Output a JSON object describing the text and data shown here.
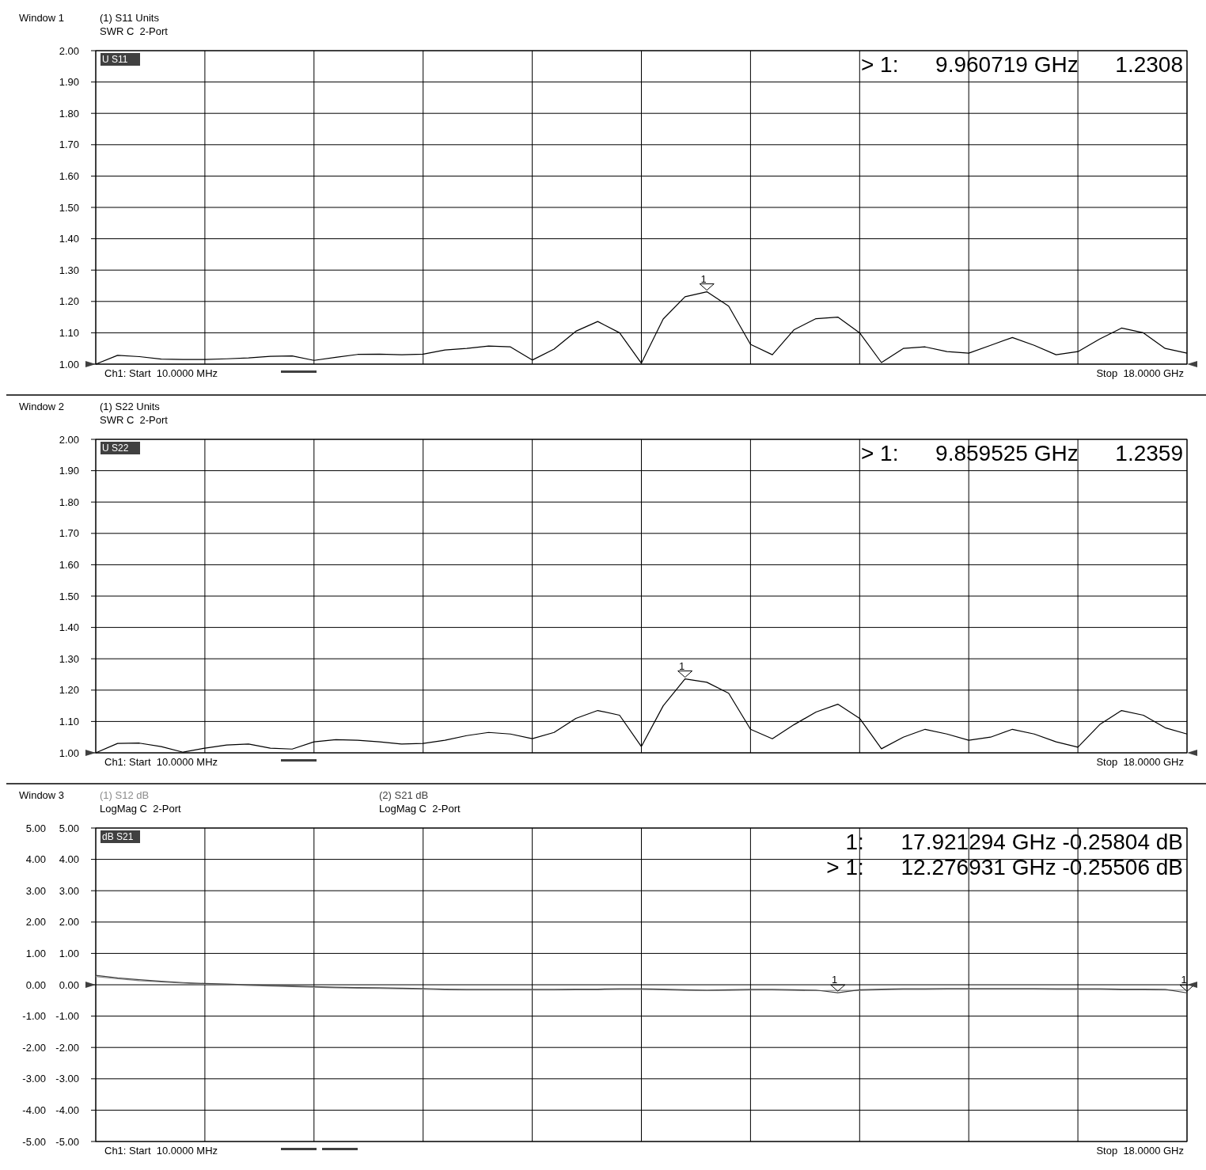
{
  "chart_data": [
    {
      "type": "line",
      "title": "Window 1",
      "subtitle": "SWR C  2-Port",
      "grid": true,
      "tick_labels": "y",
      "categories": [
        null,
        null,
        null,
        null,
        null,
        null,
        null,
        null,
        null,
        null,
        null,
        null,
        null,
        null,
        null,
        null,
        null,
        null,
        null,
        null,
        null,
        null,
        null,
        null,
        null,
        null,
        null,
        null,
        null,
        null,
        null,
        null,
        null,
        null,
        null,
        null,
        null,
        null,
        null,
        null,
        null,
        null,
        null,
        null,
        null,
        null,
        null,
        null,
        null,
        null,
        null
      ],
      "ylim": [
        1,
        2
      ],
      "yticks": [
        {
          "value": 1,
          "label": "1.00"
        },
        {
          "value": 1.1,
          "label": "1.10"
        },
        {
          "value": 1.2,
          "label": "1.20"
        },
        {
          "value": 1.3,
          "label": "1.30"
        },
        {
          "value": 1.4,
          "label": "1.40"
        },
        {
          "value": 1.5,
          "label": "1.50"
        },
        {
          "value": 1.6,
          "label": "1.60"
        },
        {
          "value": 1.7,
          "label": "1.70"
        },
        {
          "value": 1.8,
          "label": "1.80"
        },
        {
          "value": 1.9,
          "label": "1.90"
        },
        {
          "value": 2,
          "label": "2.00"
        }
      ],
      "series": [
        {
          "name": "(1) S11 Units",
          "color": "#000000",
          "values": [
            1.0,
            1.028,
            1.024,
            1.016,
            1.015,
            1.015,
            1.017,
            1.02,
            1.025,
            1.026,
            1.012,
            1.022,
            1.031,
            1.032,
            1.03,
            1.032,
            1.045,
            1.05,
            1.058,
            1.055,
            1.013,
            1.048,
            1.105,
            1.136,
            1.1,
            1.003,
            1.144,
            1.215,
            1.2308,
            1.185,
            1.063,
            1.03,
            1.11,
            1.145,
            1.15,
            1.1,
            1.005,
            1.05,
            1.055,
            1.04,
            1.035,
            1.06,
            1.085,
            1.06,
            1.03,
            1.04,
            1.08,
            1.115,
            1.1,
            1.05,
            1.035
          ]
        }
      ],
      "annotations": [
        "U S11",
        "> 1:      9.960719 GHz      1.2308",
        "Ch1: Start  10.0000 MHz",
        "Stop  18.0000 GHz",
        {
          "text": "1",
          "y": 1.2308
        }
      ]
    },
    {
      "type": "line",
      "title": "Window 2",
      "subtitle": "SWR C  2-Port",
      "grid": true,
      "tick_labels": "y",
      "categories": [
        null,
        null,
        null,
        null,
        null,
        null,
        null,
        null,
        null,
        null,
        null,
        null,
        null,
        null,
        null,
        null,
        null,
        null,
        null,
        null,
        null,
        null,
        null,
        null,
        null,
        null,
        null,
        null,
        null,
        null,
        null,
        null,
        null,
        null,
        null,
        null,
        null,
        null,
        null,
        null,
        null,
        null,
        null,
        null,
        null,
        null,
        null,
        null,
        null,
        null,
        null
      ],
      "ylim": [
        1,
        2
      ],
      "yticks": [
        {
          "value": 1,
          "label": "1.00"
        },
        {
          "value": 1.1,
          "label": "1.10"
        },
        {
          "value": 1.2,
          "label": "1.20"
        },
        {
          "value": 1.3,
          "label": "1.30"
        },
        {
          "value": 1.4,
          "label": "1.40"
        },
        {
          "value": 1.5,
          "label": "1.50"
        },
        {
          "value": 1.6,
          "label": "1.60"
        },
        {
          "value": 1.7,
          "label": "1.70"
        },
        {
          "value": 1.8,
          "label": "1.80"
        },
        {
          "value": 1.9,
          "label": "1.90"
        },
        {
          "value": 2,
          "label": "2.00"
        }
      ],
      "series": [
        {
          "name": "(1) S22 Units",
          "color": "#000000",
          "values": [
            1.0,
            1.03,
            1.031,
            1.02,
            1.002,
            1.015,
            1.025,
            1.028,
            1.015,
            1.012,
            1.035,
            1.042,
            1.04,
            1.035,
            1.028,
            1.03,
            1.04,
            1.055,
            1.065,
            1.06,
            1.045,
            1.065,
            1.11,
            1.135,
            1.12,
            1.02,
            1.15,
            1.2359,
            1.225,
            1.19,
            1.075,
            1.045,
            1.09,
            1.13,
            1.155,
            1.11,
            1.013,
            1.05,
            1.075,
            1.06,
            1.04,
            1.05,
            1.075,
            1.06,
            1.035,
            1.018,
            1.09,
            1.135,
            1.12,
            1.08,
            1.06
          ]
        }
      ],
      "annotations": [
        "U S22",
        "> 1:      9.859525 GHz      1.2359",
        "Ch1: Start  10.0000 MHz",
        "Stop  18.0000 GHz",
        {
          "text": "1",
          "y": 1.2359
        }
      ]
    },
    {
      "type": "line",
      "title": "Window 3",
      "subtitle": "LogMag C  2-Port",
      "grid": true,
      "tick_labels": "y",
      "categories": [
        null,
        null,
        null,
        null,
        null,
        null,
        null,
        null,
        null,
        null,
        null,
        null,
        null,
        null,
        null,
        null,
        null,
        null,
        null,
        null,
        null,
        null,
        null,
        null,
        null,
        null,
        null,
        null,
        null,
        null,
        null,
        null,
        null,
        null,
        null,
        null,
        null,
        null,
        null,
        null,
        null,
        null,
        null,
        null,
        null,
        null,
        null,
        null,
        null,
        null,
        null
      ],
      "ylim": [
        -5,
        5
      ],
      "yticks": [
        {
          "value": -5,
          "label": "-5.00"
        },
        {
          "value": -4,
          "label": "-4.00"
        },
        {
          "value": -3,
          "label": "-3.00"
        },
        {
          "value": -2,
          "label": "-2.00"
        },
        {
          "value": -1,
          "label": "-1.00"
        },
        {
          "value": 0,
          "label": "0.00"
        },
        {
          "value": 1,
          "label": "1.00"
        },
        {
          "value": 2,
          "label": "2.00"
        },
        {
          "value": 3,
          "label": "3.00"
        },
        {
          "value": 4,
          "label": "4.00"
        },
        {
          "value": 5,
          "label": "5.00"
        }
      ],
      "y2lim": [
        -5,
        5
      ],
      "y2ticks": [
        {
          "value": -5,
          "label": "-5.00"
        },
        {
          "value": -4,
          "label": "-4.00"
        },
        {
          "value": -3,
          "label": "-3.00"
        },
        {
          "value": -2,
          "label": "-2.00"
        },
        {
          "value": -1,
          "label": "-1.00"
        },
        {
          "value": 0,
          "label": "0.00"
        },
        {
          "value": 1,
          "label": "1.00"
        },
        {
          "value": 2,
          "label": "2.00"
        },
        {
          "value": 3,
          "label": "3.00"
        },
        {
          "value": 4,
          "label": "4.00"
        },
        {
          "value": 5,
          "label": "5.00"
        }
      ],
      "series": [
        {
          "name": "(1) S12 dB",
          "color": "#8c8c8c",
          "values": [
            0.26,
            0.19,
            0.13,
            0.09,
            0.05,
            0.02,
            0.0,
            -0.02,
            -0.04,
            -0.06,
            -0.08,
            -0.1,
            -0.11,
            -0.12,
            -0.13,
            -0.14,
            -0.16,
            -0.17,
            -0.17,
            -0.17,
            -0.17,
            -0.17,
            -0.16,
            -0.16,
            -0.15,
            -0.15,
            -0.16,
            -0.18,
            -0.19,
            -0.18,
            -0.17,
            -0.17,
            -0.18,
            -0.19,
            -0.18,
            -0.18,
            -0.16,
            -0.15,
            -0.15,
            -0.14,
            -0.14,
            -0.14,
            -0.14,
            -0.14,
            -0.15,
            -0.15,
            -0.15,
            -0.16,
            -0.16,
            -0.17,
            -0.17
          ]
        },
        {
          "name": "(2) S21 dB",
          "color": "#404040",
          "values": [
            0.3,
            0.22,
            0.16,
            0.11,
            0.07,
            0.04,
            0.02,
            0.0,
            -0.02,
            -0.04,
            -0.06,
            -0.08,
            -0.09,
            -0.1,
            -0.11,
            -0.12,
            -0.14,
            -0.15,
            -0.15,
            -0.15,
            -0.15,
            -0.15,
            -0.14,
            -0.14,
            -0.13,
            -0.13,
            -0.14,
            -0.16,
            -0.17,
            -0.16,
            -0.15,
            -0.15,
            -0.16,
            -0.17,
            -0.25506,
            -0.16,
            -0.14,
            -0.13,
            -0.13,
            -0.12,
            -0.12,
            -0.12,
            -0.12,
            -0.12,
            -0.13,
            -0.13,
            -0.13,
            -0.14,
            -0.14,
            -0.15,
            -0.25804
          ]
        }
      ],
      "annotations": [
        "dB S21",
        "1:      17.921294 GHz -0.25804 dB",
        "> 1:      12.276931 GHz -0.25506 dB",
        "Ch1: Start  10.0000 MHz",
        "Stop  18.0000 GHz",
        "LogMag C  2-Port",
        {
          "text": "1",
          "y": -0.25506
        },
        {
          "text": "1",
          "y": -0.25804
        }
      ]
    }
  ]
}
